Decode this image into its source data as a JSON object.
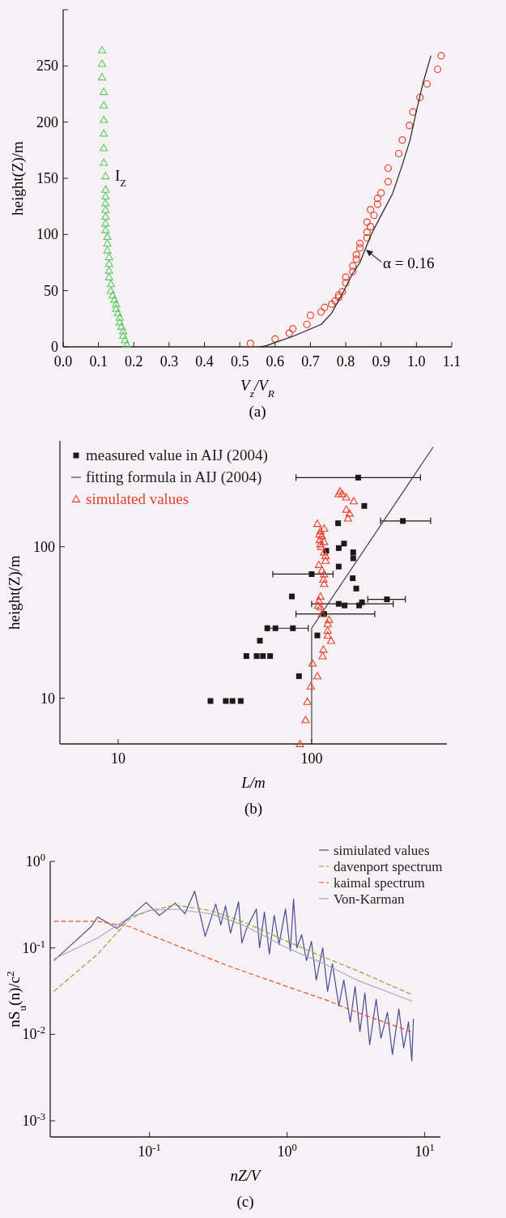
{
  "chart_data": [
    {
      "type": "scatter",
      "xlabel": "V$_{z}$/V$_{R}$",
      "ylabel": "height(Z)/m",
      "xlim": [
        0,
        1.1
      ],
      "ylim": [
        0,
        300
      ],
      "xticks": [
        {
          "value": 0,
          "label": "0.0"
        },
        0.1,
        0.2,
        0.3,
        0.4,
        0.5,
        0.6,
        0.7,
        0.8,
        0.9,
        {
          "value": 1,
          "label": "1.0"
        },
        1.1
      ],
      "yticks": [
        0,
        50,
        100,
        150,
        200,
        250,
        {
          "value": 300,
          "label": null
        }
      ],
      "legend": false,
      "annotations": [
        {
          "text": "α = 0.16",
          "x": 0.855,
          "y": 87
        },
        "(a)"
      ],
      "series": [
        {
          "name": "I$_{Z}$",
          "type": "scatter",
          "marker": "triangle",
          "color": "#5cc860",
          "x": [
            0.11,
            0.11,
            0.11,
            0.115,
            0.115,
            0.115,
            0.115,
            0.115,
            0.115,
            0.12,
            0.12,
            0.12,
            0.12,
            0.12,
            0.12,
            0.12,
            0.12,
            0.125,
            0.125,
            0.125,
            0.13,
            0.13,
            0.13,
            0.13,
            0.135,
            0.135,
            0.14,
            0.145,
            0.15,
            0.15,
            0.155,
            0.16,
            0.16,
            0.165,
            0.17,
            0.17,
            0.175,
            0.18
          ],
          "values": [
            264,
            252,
            240,
            227,
            215,
            202,
            190,
            177,
            164,
            152,
            140,
            134,
            128,
            122,
            116,
            110,
            104,
            98,
            92,
            86,
            80,
            74,
            68,
            62,
            56,
            50,
            46,
            42,
            38,
            34,
            30,
            26,
            22,
            18,
            14,
            10,
            6,
            2
          ]
        },
        {
          "type": "scatter",
          "marker": "circle",
          "color": "#e8402a",
          "x": [
            1.07,
            1.06,
            1.03,
            1.01,
            0.99,
            0.98,
            0.96,
            0.95,
            0.92,
            0.92,
            0.9,
            0.89,
            0.89,
            0.87,
            0.88,
            0.86,
            0.87,
            0.86,
            0.86,
            0.84,
            0.84,
            0.83,
            0.83,
            0.82,
            0.82,
            0.8,
            0.8,
            0.79,
            0.78,
            0.78,
            0.77,
            0.76,
            0.74,
            0.73,
            0.7,
            0.69,
            0.65,
            0.64,
            0.6,
            0.53
          ],
          "values": [
            259,
            247,
            234,
            222,
            209,
            197,
            184,
            172,
            159,
            147,
            137,
            132,
            127,
            122,
            117,
            111,
            107,
            102,
            97,
            92,
            88,
            82,
            78,
            72,
            67,
            62,
            57,
            49,
            46,
            44,
            41,
            38,
            35,
            31,
            28,
            20,
            16,
            12,
            7,
            3
          ]
        },
        {
          "type": "line",
          "color": "#222222",
          "x": [
            0.555,
            0.575,
            0.61,
            0.648,
            0.731,
            0.76,
            0.795,
            0.817,
            0.84,
            0.872,
            0.905,
            0.932,
            0.958,
            0.982,
            1.0,
            1.018,
            1.041
          ],
          "values": [
            0,
            1,
            5,
            9,
            20,
            30,
            50,
            64,
            75,
            100,
            120,
            136,
            160,
            184,
            210,
            234,
            259
          ]
        }
      ]
    },
    {
      "type": "scatter",
      "xlabel": "L/m",
      "ylabel": "height(Z)/m",
      "log": "xy",
      "xlim": [
        5,
        500
      ],
      "ylim": [
        5,
        500
      ],
      "xticks": [
        10,
        100
      ],
      "yticks": [
        10,
        100
      ],
      "legend": "top left",
      "annotations": [
        "(b)"
      ],
      "series": [
        {
          "name": "measured value in AIJ (2004)",
          "type": "scatter",
          "marker": "square",
          "color": "#1a1a1a",
          "x": [
            174,
            187,
            296,
            137,
            147,
            138,
            119,
            164,
            164,
            138,
            100,
            163,
            170,
            79,
            245,
            138,
            148,
            176,
            182,
            116,
            59,
            65,
            80,
            107,
            54,
            46,
            52,
            56,
            61,
            86,
            30,
            36,
            39,
            43
          ],
          "values": [
            286,
            186,
            148,
            143,
            105,
            98,
            94,
            92,
            84,
            74,
            66,
            62,
            53,
            47,
            45,
            42,
            41,
            41,
            43,
            36,
            29,
            29,
            29,
            26,
            24,
            19,
            19,
            19,
            19,
            14,
            9.6,
            9.6,
            9.6,
            9.6
          ],
          "xerrors": [
            [
              83,
              365
            ],
            null,
            [
              227,
              412
            ],
            null,
            null,
            null,
            null,
            null,
            null,
            null,
            [
              63,
              129
            ],
            null,
            null,
            null,
            [
              195,
              305
            ],
            [
              100,
              264
            ],
            null,
            null,
            null,
            [
              83,
              212
            ],
            null,
            null,
            [
              59,
              96
            ],
            null,
            null,
            null,
            null,
            null,
            null,
            null,
            null,
            null,
            null,
            null
          ]
        },
        {
          "name": "fitting formula in AIJ (2004)",
          "type": "line",
          "color": "#444444",
          "x": [
            100,
            100,
            425
          ],
          "values": [
            5,
            29,
            456
          ]
        },
        {
          "name": "simulated values",
          "type": "scatter",
          "marker": "triangle",
          "color": "#e8402a",
          "x": [
            140,
            144,
            138,
            151,
            165,
            151,
            157,
            154,
            107,
            116,
            111,
            110,
            113,
            110,
            116,
            111,
            112,
            116,
            118,
            118,
            109,
            113,
            116,
            115,
            116,
            111,
            109,
            108,
            111,
            113,
            123,
            121,
            121,
            121,
            126,
            115,
            114,
            101,
            107,
            99,
            95,
            93,
            87
          ],
          "values": [
            232,
            223,
            223,
            212,
            200,
            176,
            166,
            154,
            142,
            132,
            127,
            121,
            118,
            111,
            108,
            104,
            100,
            92,
            87,
            81,
            76,
            70,
            66,
            61,
            57,
            47,
            44,
            41,
            40,
            36,
            33,
            31,
            28,
            26,
            24,
            21,
            19,
            17,
            14,
            12,
            9.5,
            7.2,
            5
          ]
        }
      ]
    },
    {
      "type": "line",
      "xlabel": "nZ/V",
      "ylabel": "nS$_{u}$(n)/c$^{2}$",
      "log": "xy",
      "xlim": [
        0.019,
        13
      ],
      "ylim": [
        0.00065,
        1
      ],
      "xticks": [
        {
          "value": 0.1,
          "label": "10$^{-1}$"
        },
        {
          "value": 1,
          "label": "10$^{0}$"
        },
        {
          "value": 10,
          "label": "10$^{1}$"
        }
      ],
      "yticks": [
        {
          "value": 0.001,
          "label": "10$^{-3}$"
        },
        {
          "value": 0.01,
          "label": "10$^{-2}$"
        },
        {
          "value": 0.1,
          "label": "10$^{-1}$"
        },
        {
          "value": 1,
          "label": "10$^{0}$"
        }
      ],
      "legend": "top right",
      "annotations": [
        "(c)"
      ],
      "series": [
        {
          "name": "simiulated values",
          "color": "#4b4b90",
          "line_style": "solid",
          "x": [
            0.0202,
            0.0288,
            0.0377,
            0.0421,
            0.0582,
            0.0947,
            0.118,
            0.154,
            0.181,
            0.213,
            0.254,
            0.303,
            0.33,
            0.357,
            0.388,
            0.444,
            0.469,
            0.508,
            0.598,
            0.631,
            0.684,
            0.743,
            0.806,
            0.874,
            0.973,
            1.056,
            1.114,
            1.177,
            1.276,
            1.384,
            1.501,
            1.629,
            1.815,
            1.968,
            2.134,
            2.377,
            2.582,
            2.877,
            3.119,
            3.381,
            3.673,
            3.981,
            4.436,
            4.808,
            5.358,
            5.821,
            6.486,
            7.031,
            7.621,
            8.054,
            8.279
          ],
          "values": [
            0.0712,
            0.119,
            0.176,
            0.228,
            0.168,
            0.335,
            0.238,
            0.33,
            0.248,
            0.453,
            0.136,
            0.321,
            0.184,
            0.308,
            0.148,
            0.341,
            0.114,
            0.168,
            0.282,
            0.1,
            0.259,
            0.0845,
            0.238,
            0.109,
            0.282,
            0.0921,
            0.365,
            0.1,
            0.142,
            0.0712,
            0.119,
            0.0425,
            0.1,
            0.0314,
            0.0653,
            0.0213,
            0.0425,
            0.0139,
            0.0357,
            0.0107,
            0.0301,
            0.00759,
            0.0254,
            0.00902,
            0.018,
            0.00586,
            0.0196,
            0.00697,
            0.0139,
            0.00493,
            0.0151
          ]
        },
        {
          "name": "davenport spectrum",
          "color": "#8aa83a",
          "line_style": "dashed",
          "x": [
            0.0202,
            0.042,
            0.072,
            0.1,
            0.154,
            0.28,
            0.481,
            1,
            1.87,
            3.2,
            8.05
          ],
          "values": [
            0.0314,
            0.0846,
            0.218,
            0.27,
            0.313,
            0.27,
            0.2,
            0.119,
            0.0776,
            0.055,
            0.0288
          ]
        },
        {
          "name": "kaimal spectrum",
          "color": "#e8502a",
          "line_style": "dashed",
          "x": [
            0.0202,
            0.042,
            0.072,
            0.1,
            0.213,
            0.367,
            1,
            1.87,
            3.2,
            8.05
          ],
          "values": [
            0.203,
            0.203,
            0.176,
            0.142,
            0.0883,
            0.0626,
            0.0357,
            0.0254,
            0.018,
            0.0107
          ]
        },
        {
          "name": "Von-Karman",
          "color": "#a8a8c0",
          "line_style": "solid",
          "x": [
            0.0202,
            0.042,
            0.072,
            0.1,
            0.154,
            0.28,
            0.481,
            1,
            1.87,
            3.2,
            8.05
          ],
          "values": [
            0.0743,
            0.13,
            0.228,
            0.27,
            0.28,
            0.248,
            0.184,
            0.1,
            0.0653,
            0.0425,
            0.0243
          ]
        }
      ]
    }
  ]
}
